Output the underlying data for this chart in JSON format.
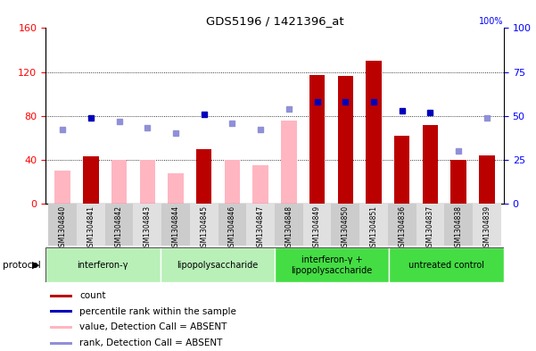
{
  "title": "GDS5196 / 1421396_at",
  "samples": [
    "GSM1304840",
    "GSM1304841",
    "GSM1304842",
    "GSM1304843",
    "GSM1304844",
    "GSM1304845",
    "GSM1304846",
    "GSM1304847",
    "GSM1304848",
    "GSM1304849",
    "GSM1304850",
    "GSM1304851",
    "GSM1304836",
    "GSM1304837",
    "GSM1304838",
    "GSM1304839"
  ],
  "count_present": [
    null,
    43,
    null,
    null,
    null,
    50,
    null,
    null,
    null,
    117,
    116,
    130,
    62,
    72,
    40,
    44
  ],
  "count_absent": [
    30,
    null,
    40,
    40,
    28,
    null,
    40,
    35,
    76,
    null,
    null,
    null,
    null,
    null,
    null,
    null
  ],
  "rank_present": [
    null,
    49,
    null,
    null,
    null,
    51,
    null,
    null,
    null,
    58,
    58,
    58,
    53,
    52,
    null,
    null
  ],
  "rank_absent": [
    42,
    null,
    47,
    43,
    40,
    null,
    46,
    42,
    54,
    null,
    null,
    null,
    null,
    null,
    30,
    49
  ],
  "groups": [
    {
      "label": "interferon-γ",
      "start": 0,
      "end": 4,
      "color": "#b8f0b8"
    },
    {
      "label": "lipopolysaccharide",
      "start": 4,
      "end": 8,
      "color": "#b8f0b8"
    },
    {
      "label": "interferon-γ +\nlipopolysaccharide",
      "start": 8,
      "end": 12,
      "color": "#44dd44"
    },
    {
      "label": "untreated control",
      "start": 12,
      "end": 16,
      "color": "#44dd44"
    }
  ],
  "left_ylim": [
    0,
    160
  ],
  "left_yticks": [
    0,
    40,
    80,
    120,
    160
  ],
  "right_ylim": [
    0,
    100
  ],
  "right_yticks": [
    0,
    25,
    50,
    75,
    100
  ],
  "bar_color_present": "#bb0000",
  "bar_color_absent": "#ffb6c1",
  "dot_color_present": "#0000bb",
  "dot_color_absent": "#9090d8",
  "legend_items": [
    {
      "color": "#bb0000",
      "label": "count"
    },
    {
      "color": "#0000bb",
      "label": "percentile rank within the sample"
    },
    {
      "color": "#ffb6c1",
      "label": "value, Detection Call = ABSENT"
    },
    {
      "color": "#9090d8",
      "label": "rank, Detection Call = ABSENT"
    }
  ]
}
